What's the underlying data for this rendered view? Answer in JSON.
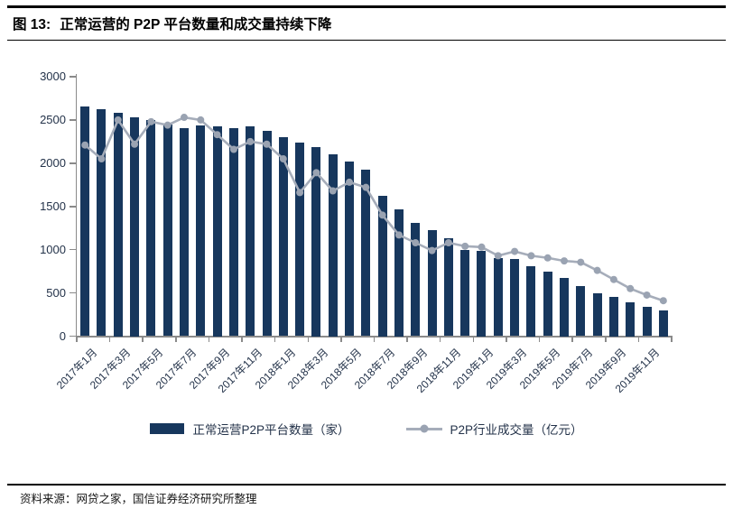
{
  "header": {
    "figure_label": "图 13:",
    "title": "正常运营的 P2P 平台数量和成交量持续下降"
  },
  "footer": {
    "source": "资料来源：网贷之家，国信证券经济研究所整理"
  },
  "colors": {
    "bar": "#17375d",
    "line": "#a6adba",
    "marker": "#9aa3b2",
    "axis": "#8a8a8a",
    "axis_text": "#24334a"
  },
  "chart_data": {
    "type": "combo",
    "categories": [
      "2017年1月",
      "2017年2月",
      "2017年3月",
      "2017年4月",
      "2017年5月",
      "2017年6月",
      "2017年7月",
      "2017年8月",
      "2017年9月",
      "2017年10月",
      "2017年11月",
      "2017年12月",
      "2018年1月",
      "2018年2月",
      "2018年3月",
      "2018年4月",
      "2018年5月",
      "2018年6月",
      "2018年7月",
      "2018年8月",
      "2018年9月",
      "2018年10月",
      "2018年11月",
      "2018年12月",
      "2019年1月",
      "2019年2月",
      "2019年3月",
      "2019年4月",
      "2019年5月",
      "2019年6月",
      "2019年7月",
      "2019年8月",
      "2019年9月",
      "2019年10月",
      "2019年11月",
      "2019年12月"
    ],
    "x_tick_labels": [
      "2017年1月",
      "2017年3月",
      "2017年5月",
      "2017年7月",
      "2017年9月",
      "2017年11月",
      "2018年1月",
      "2018年3月",
      "2018年5月",
      "2018年7月",
      "2018年9月",
      "2018年11月",
      "2019年1月",
      "2019年3月",
      "2019年5月",
      "2019年7月",
      "2019年9月",
      "2019年11月"
    ],
    "yticks": [
      0,
      500,
      1000,
      1500,
      2000,
      2500,
      3000
    ],
    "ylim": [
      0,
      3000
    ],
    "ytick_step": 500,
    "grid": false,
    "legend_position": "bottom",
    "series": [
      {
        "name": "正常运营P2P平台数量（家）",
        "type": "bar",
        "color": "#17375d",
        "values": [
          2660,
          2620,
          2580,
          2535,
          2495,
          2450,
          2405,
          2440,
          2430,
          2405,
          2425,
          2375,
          2300,
          2240,
          2190,
          2100,
          2020,
          1930,
          1620,
          1470,
          1310,
          1225,
          1130,
          1000,
          990,
          905,
          890,
          810,
          745,
          675,
          575,
          500,
          450,
          390,
          335,
          300
        ]
      },
      {
        "name": "P2P行业成交量（亿元）",
        "type": "line",
        "color": "#a6adba",
        "marker_color": "#9aa3b2",
        "values": [
          2210,
          2050,
          2500,
          2220,
          2480,
          2440,
          2530,
          2500,
          2330,
          2160,
          2250,
          2220,
          2050,
          1660,
          1890,
          1680,
          1780,
          1720,
          1400,
          1170,
          1080,
          990,
          1080,
          1040,
          1030,
          930,
          980,
          930,
          905,
          870,
          855,
          760,
          655,
          550,
          475,
          410
        ]
      }
    ]
  }
}
